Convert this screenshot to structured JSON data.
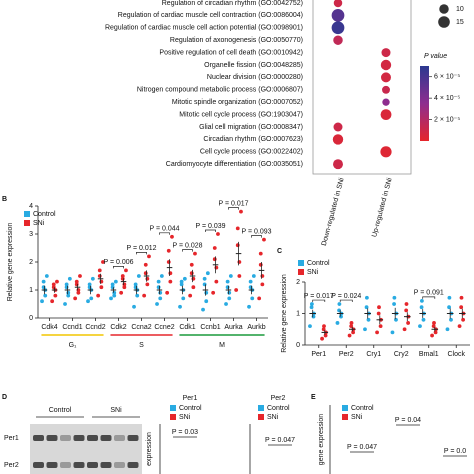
{
  "chart_data": [
    {
      "type": "bubble",
      "terms": [
        {
          "label": "Regulation of circadian rhythm (GO:0042752)",
          "color": "#d7262b"
        },
        {
          "label": "Regulation of cardiac muscle cell contraction (GO:0086004)",
          "color": "#111111"
        },
        {
          "label": "Regulation of cardiac muscle cell action potential (GO:0098901)",
          "color": "#111111"
        },
        {
          "label": "Regulation of axonogenesis (GO:0050770)",
          "color": "#111111"
        },
        {
          "label": "Positive regulation of cell death (GO:0010942)",
          "color": "#111111"
        },
        {
          "label": "Organelle fission (GO:0048285)",
          "color": "#111111"
        },
        {
          "label": "Nuclear division (GO:0000280)",
          "color": "#1a9a3c"
        },
        {
          "label": "Nitrogen compound metabolic process (GO:0006807)",
          "color": "#111111"
        },
        {
          "label": "Mitotic spindle organization (GO:0007052)",
          "color": "#1a9a3c"
        },
        {
          "label": "Mitotic cell cycle process (GO:1903047)",
          "color": "#1a9a3c"
        },
        {
          "label": "Glial cell migration (GO:0008347)",
          "color": "#111111"
        },
        {
          "label": "Circadian rhythm (GO:0007623)",
          "color": "#d7262b"
        },
        {
          "label": "Cell cycle process (GO:0022402)",
          "color": "#1a9a3c"
        },
        {
          "label": "Cardiomyocyte differentiation (GO:0035051)",
          "color": "#111111"
        }
      ],
      "series": [
        {
          "name": "Down-regulated in SNi",
          "sizes": [
            8,
            18,
            18,
            10,
            null,
            null,
            null,
            null,
            null,
            null,
            9,
            12,
            null,
            11
          ],
          "pvalues": [
            1e-05,
            5.5e-05,
            6.5e-05,
            1.5e-05,
            null,
            null,
            null,
            null,
            null,
            null,
            1e-05,
            5e-06,
            null,
            1e-05
          ]
        },
        {
          "name": "Up-regulated in SNi",
          "sizes": [
            null,
            null,
            null,
            null,
            9,
            12,
            11,
            7,
            6,
            13,
            null,
            null,
            14,
            null
          ],
          "pvalues": [
            null,
            null,
            null,
            null,
            1e-05,
            8e-06,
            8e-06,
            1.2e-05,
            3.5e-05,
            5e-06,
            null,
            null,
            3e-06,
            null
          ]
        }
      ],
      "size_legend": [
        10,
        15
      ],
      "colorbar_title": "P value",
      "colormap": [
        "#e6262b",
        "#8e2d8f",
        "#2b3990"
      ],
      "clim": [
        0,
        7e-05
      ],
      "cticks": [
        {
          "value": 6e-05,
          "label": "6 × 10⁻⁵"
        },
        {
          "value": 4e-05,
          "label": "4 × 10⁻⁵"
        },
        {
          "value": 2e-05,
          "label": "2 × 10⁻⁵"
        }
      ]
    },
    {
      "type": "strip",
      "label": "B",
      "y_label": "Relative gene expression",
      "categories": [
        "Cdk4",
        "Ccnd1",
        "Ccnd2",
        "Cdk2",
        "Ccna2",
        "Ccne2",
        "Cdk1",
        "Ccnb1",
        "Aurka",
        "Aurkb"
      ],
      "groups": [
        {
          "name": "G₁",
          "color": "#f2c500",
          "first": "Cdk4",
          "last": "Ccnd2"
        },
        {
          "name": "S",
          "color": "#e6262b",
          "first": "Cdk2",
          "last": "Ccne2"
        },
        {
          "name": "M",
          "color": "#1a9a3c",
          "first": "Cdk1",
          "last": "Aurkb"
        }
      ],
      "ylim": [
        0,
        4
      ],
      "yticks": [
        0,
        1,
        2,
        3,
        4
      ],
      "series": [
        {
          "name": "Control",
          "color": "#29abe2",
          "means": [
            1,
            1,
            1,
            1,
            1,
            1,
            1,
            1,
            1,
            1
          ],
          "errors": [
            0.15,
            0.15,
            0.15,
            0.1,
            0.15,
            0.15,
            0.15,
            0.2,
            0.15,
            0.15
          ],
          "points": [
            [
              0.6,
              0.8,
              1.0,
              1.1,
              1.3,
              1.5
            ],
            [
              0.5,
              0.8,
              0.9,
              1.1,
              1.2,
              1.4
            ],
            [
              0.6,
              0.7,
              1.0,
              1.1,
              1.2,
              1.4
            ],
            [
              0.7,
              0.8,
              0.9,
              1.1,
              1.2,
              1.3
            ],
            [
              0.4,
              0.8,
              1.0,
              1.1,
              1.2,
              1.5
            ],
            [
              0.5,
              0.7,
              0.9,
              1.1,
              1.3,
              1.5
            ],
            [
              0.4,
              0.7,
              1.0,
              1.2,
              1.3,
              1.4
            ],
            [
              0.3,
              0.6,
              0.9,
              1.2,
              1.4,
              1.6
            ],
            [
              0.5,
              0.7,
              0.9,
              1.1,
              1.3,
              1.5
            ],
            [
              0.4,
              0.7,
              1.0,
              1.1,
              1.3,
              1.5
            ]
          ]
        },
        {
          "name": "SNi",
          "color": "#e6262b",
          "means": [
            1.0,
            1.1,
            1.4,
            1.3,
            1.5,
            1.8,
            1.5,
            1.9,
            2.3,
            1.7
          ],
          "errors": [
            0.1,
            0.12,
            0.18,
            0.12,
            0.2,
            0.3,
            0.22,
            0.3,
            0.42,
            0.3
          ],
          "points": [
            [
              0.6,
              0.8,
              1.0,
              1.1,
              1.2,
              1.3
            ],
            [
              0.7,
              0.9,
              1.0,
              1.2,
              1.3,
              1.5
            ],
            [
              0.8,
              1.1,
              1.3,
              1.5,
              1.7,
              2.0
            ],
            [
              0.9,
              1.1,
              1.2,
              1.4,
              1.5,
              1.7
            ],
            [
              0.8,
              1.2,
              1.4,
              1.6,
              1.9,
              2.2
            ],
            [
              0.9,
              1.3,
              1.6,
              2.0,
              2.4,
              2.9
            ],
            [
              0.8,
              1.1,
              1.4,
              1.6,
              1.9,
              2.3
            ],
            [
              0.9,
              1.3,
              1.8,
              2.1,
              2.5,
              3.0
            ],
            [
              1.0,
              1.5,
              2.0,
              2.6,
              3.2,
              3.8
            ],
            [
              0.7,
              1.2,
              1.5,
              1.9,
              2.3,
              2.8
            ]
          ]
        }
      ],
      "annotations": [
        {
          "text": "P = 0.006",
          "category": "Cdk2"
        },
        {
          "text": "P = 0.012",
          "category": "Ccna2"
        },
        {
          "text": "P = 0.044",
          "category": "Ccne2"
        },
        {
          "text": "P = 0.028",
          "category": "Cdk1"
        },
        {
          "text": "P = 0.039",
          "category": "Ccnb1"
        },
        {
          "text": "P = 0.017",
          "category": "Aurka"
        },
        {
          "text": "P = 0.093",
          "category": "Aurkb"
        }
      ]
    },
    {
      "type": "strip",
      "label": "C",
      "y_label": "Relative gene expression",
      "categories": [
        "Per1",
        "Per2",
        "Cry1",
        "Cry2",
        "Bmal1",
        "Clock"
      ],
      "ylim": [
        0,
        2
      ],
      "yticks": [
        0,
        1,
        2
      ],
      "series": [
        {
          "name": "Control",
          "color": "#29abe2",
          "means": [
            1,
            1,
            1,
            1,
            1,
            1
          ],
          "errors": [
            0.12,
            0.1,
            0.16,
            0.18,
            0.14,
            0.16
          ],
          "points": [
            [
              0.6,
              0.9,
              1.0,
              1.2,
              1.3
            ],
            [
              0.7,
              0.9,
              1.0,
              1.1,
              1.3
            ],
            [
              0.5,
              0.8,
              1.0,
              1.2,
              1.5
            ],
            [
              0.4,
              0.8,
              1.0,
              1.3,
              1.5
            ],
            [
              0.6,
              0.8,
              1.0,
              1.2,
              1.4
            ],
            [
              0.5,
              0.8,
              1.0,
              1.2,
              1.5
            ]
          ]
        },
        {
          "name": "SNi",
          "color": "#e6262b",
          "means": [
            0.4,
            0.5,
            0.8,
            0.9,
            0.5,
            1.0
          ],
          "errors": [
            0.07,
            0.07,
            0.14,
            0.14,
            0.07,
            0.15
          ],
          "points": [
            [
              0.2,
              0.3,
              0.4,
              0.5,
              0.6
            ],
            [
              0.3,
              0.4,
              0.5,
              0.6,
              0.7
            ],
            [
              0.4,
              0.6,
              0.8,
              1.0,
              1.2
            ],
            [
              0.5,
              0.7,
              0.9,
              1.1,
              1.3
            ],
            [
              0.3,
              0.4,
              0.5,
              0.6,
              0.7
            ],
            [
              0.6,
              0.8,
              1.0,
              1.2,
              1.5
            ]
          ]
        }
      ],
      "annotations": [
        {
          "text": "P = 0.017",
          "category": "Per1"
        },
        {
          "text": "P = 0.024",
          "category": "Per2"
        },
        {
          "text": "P = 0.091",
          "category": "Bmal1"
        }
      ]
    },
    {
      "type": "blot",
      "label": "D",
      "columns": [
        "Control",
        "SNi"
      ],
      "rows": [
        "Per1",
        "Per2"
      ]
    },
    {
      "type": "bar",
      "title": "Per1",
      "y_label": "expression",
      "series": [
        {
          "name": "Control",
          "color": "#29abe2"
        },
        {
          "name": "SNi",
          "color": "#e6262b"
        }
      ],
      "annotations": [
        {
          "text": "P = 0.03"
        }
      ]
    },
    {
      "type": "bar",
      "title": "Per2",
      "series": [
        {
          "name": "Control",
          "color": "#29abe2"
        },
        {
          "name": "SNi",
          "color": "#e6262b"
        }
      ],
      "annotations": [
        {
          "text": "P = 0.047"
        }
      ]
    },
    {
      "type": "strip",
      "label": "E",
      "y_label": "gene expression",
      "series": [
        {
          "name": "Control",
          "color": "#29abe2"
        },
        {
          "name": "SNi",
          "color": "#e6262b"
        }
      ],
      "annotations": [
        {
          "text": "P = 0.047"
        },
        {
          "text": "P = 0.04"
        },
        {
          "text": "P = 0.0"
        }
      ]
    }
  ]
}
